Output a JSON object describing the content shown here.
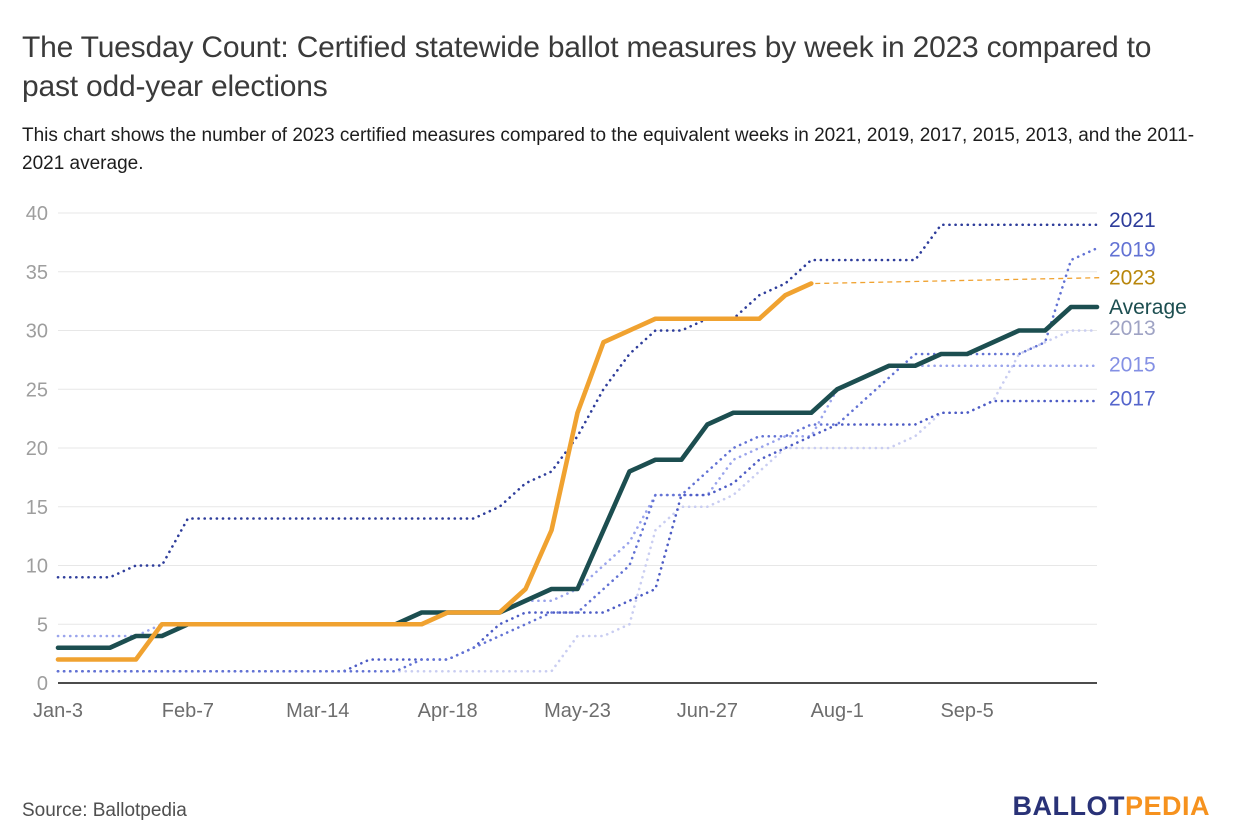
{
  "chart_data": {
    "type": "line",
    "title": "The Tuesday Count: Certified statewide ballot measures by week in 2023 compared to past odd-year elections",
    "subtitle": "This chart shows the number of 2023 certified measures compared to the equivalent weeks in 2021, 2019, 2017, 2015, 2013, and the 2011-2021 average.",
    "n_points": 41,
    "ylim": [
      0,
      40
    ],
    "y_ticks": [
      0,
      5,
      10,
      15,
      20,
      25,
      30,
      35,
      40
    ],
    "x_tick_labels": [
      "Jan-3",
      "Feb-7",
      "Mar-14",
      "Apr-18",
      "May-23",
      "Jun-27",
      "Aug-1",
      "Sep-5"
    ],
    "x_tick_positions": [
      0,
      5,
      10,
      15,
      20,
      25,
      30,
      35
    ],
    "grid": true,
    "legend_position": "right-edge-labels",
    "axis": {
      "grid_color": "#e7e7e7",
      "axis_line_color": "#111111",
      "y_label_color": "#9e9e9e",
      "x_label_color": "#6d6d6d"
    },
    "series": [
      {
        "id": "2021",
        "label": "2021",
        "color": "#2e3d9b",
        "label_color": "#2e3d9b",
        "style": "dotted",
        "width": 2.6,
        "z": 5,
        "label_value": 39.4,
        "leader": false,
        "values": [
          9,
          9,
          9,
          10,
          10,
          14,
          14,
          14,
          14,
          14,
          14,
          14,
          14,
          14,
          14,
          14,
          14,
          15,
          17,
          18,
          21,
          25,
          28,
          30,
          30,
          31,
          31,
          33,
          34,
          36,
          36,
          36,
          36,
          36,
          39,
          39,
          39,
          39,
          39,
          39,
          39
        ]
      },
      {
        "id": "2019",
        "label": "2019",
        "color": "#6272d4",
        "label_color": "#6272d4",
        "style": "dotted",
        "width": 2.6,
        "z": 4,
        "label_value": 36.9,
        "leader": false,
        "values": [
          1,
          1,
          1,
          1,
          1,
          1,
          1,
          1,
          1,
          1,
          1,
          1,
          1,
          1,
          2,
          2,
          3,
          4,
          5,
          6,
          6,
          8,
          10,
          16,
          16,
          18,
          20,
          21,
          21,
          22,
          22,
          24,
          26,
          28,
          28,
          28,
          28,
          28,
          29,
          36,
          37
        ]
      },
      {
        "id": "2023",
        "label": "2023",
        "color": "#f0a230",
        "label_color": "#b8860b",
        "style": "solid",
        "width": 4.6,
        "z": 7,
        "label_value": 34.5,
        "leader": true,
        "values": [
          2,
          2,
          2,
          2,
          5,
          5,
          5,
          5,
          5,
          5,
          5,
          5,
          5,
          5,
          5,
          6,
          6,
          6,
          8,
          13,
          23,
          29,
          30,
          31,
          31,
          31,
          31,
          31,
          33,
          34,
          null,
          null,
          null,
          null,
          null,
          null,
          null,
          null,
          null,
          null,
          null
        ]
      },
      {
        "id": "average",
        "label": "Average",
        "color": "#1c4e50",
        "label_color": "#1c4e50",
        "style": "solid",
        "width": 4.6,
        "z": 6,
        "label_value": 32,
        "leader": false,
        "values": [
          3,
          3,
          3,
          4,
          4,
          5,
          5,
          5,
          5,
          5,
          5,
          5,
          5,
          5,
          6,
          6,
          6,
          6,
          7,
          8,
          8,
          13,
          18,
          19,
          19,
          22,
          23,
          23,
          23,
          23,
          25,
          26,
          27,
          27,
          28,
          28,
          29,
          30,
          30,
          32,
          32
        ]
      },
      {
        "id": "2013",
        "label": "2013",
        "color": "#c9cdf1",
        "label_color": "#9fa3c4",
        "style": "dotted",
        "width": 2.6,
        "z": 1,
        "label_value": 30.2,
        "leader": false,
        "values": [
          1,
          1,
          1,
          1,
          1,
          1,
          1,
          1,
          1,
          1,
          1,
          1,
          1,
          1,
          1,
          1,
          1,
          1,
          1,
          1,
          4,
          4,
          5,
          13,
          15,
          15,
          16,
          18,
          20,
          20,
          20,
          20,
          20,
          21,
          23,
          23,
          24,
          28,
          29,
          30,
          30
        ]
      },
      {
        "id": "2015",
        "label": "2015",
        "color": "#9aa4ec",
        "label_color": "#8490e4",
        "style": "dotted",
        "width": 2.6,
        "z": 2,
        "label_value": 27.1,
        "leader": false,
        "values": [
          4,
          4,
          4,
          4,
          5,
          5,
          5,
          5,
          5,
          5,
          5,
          5,
          5,
          5,
          5,
          6,
          6,
          6,
          7,
          7,
          8,
          10,
          12,
          16,
          16,
          16,
          19,
          20,
          21,
          21,
          25,
          26,
          27,
          27,
          27,
          27,
          27,
          27,
          27,
          27,
          27
        ]
      },
      {
        "id": "2017",
        "label": "2017",
        "color": "#4d5cc5",
        "label_color": "#5565cc",
        "style": "dotted",
        "width": 2.6,
        "z": 3,
        "label_value": 24.2,
        "leader": false,
        "values": [
          1,
          1,
          1,
          1,
          1,
          1,
          1,
          1,
          1,
          1,
          1,
          1,
          2,
          2,
          2,
          2,
          3,
          5,
          6,
          6,
          6,
          6,
          7,
          8,
          16,
          16,
          17,
          19,
          20,
          21,
          22,
          22,
          22,
          22,
          23,
          23,
          24,
          24,
          24,
          24,
          24
        ]
      }
    ]
  },
  "footer": {
    "source": "Source: Ballotpedia",
    "logo": {
      "part1": "BALLOT",
      "part1_color": "#293277",
      "part2": "PEDIA",
      "part2_color": "#f6921e"
    }
  }
}
